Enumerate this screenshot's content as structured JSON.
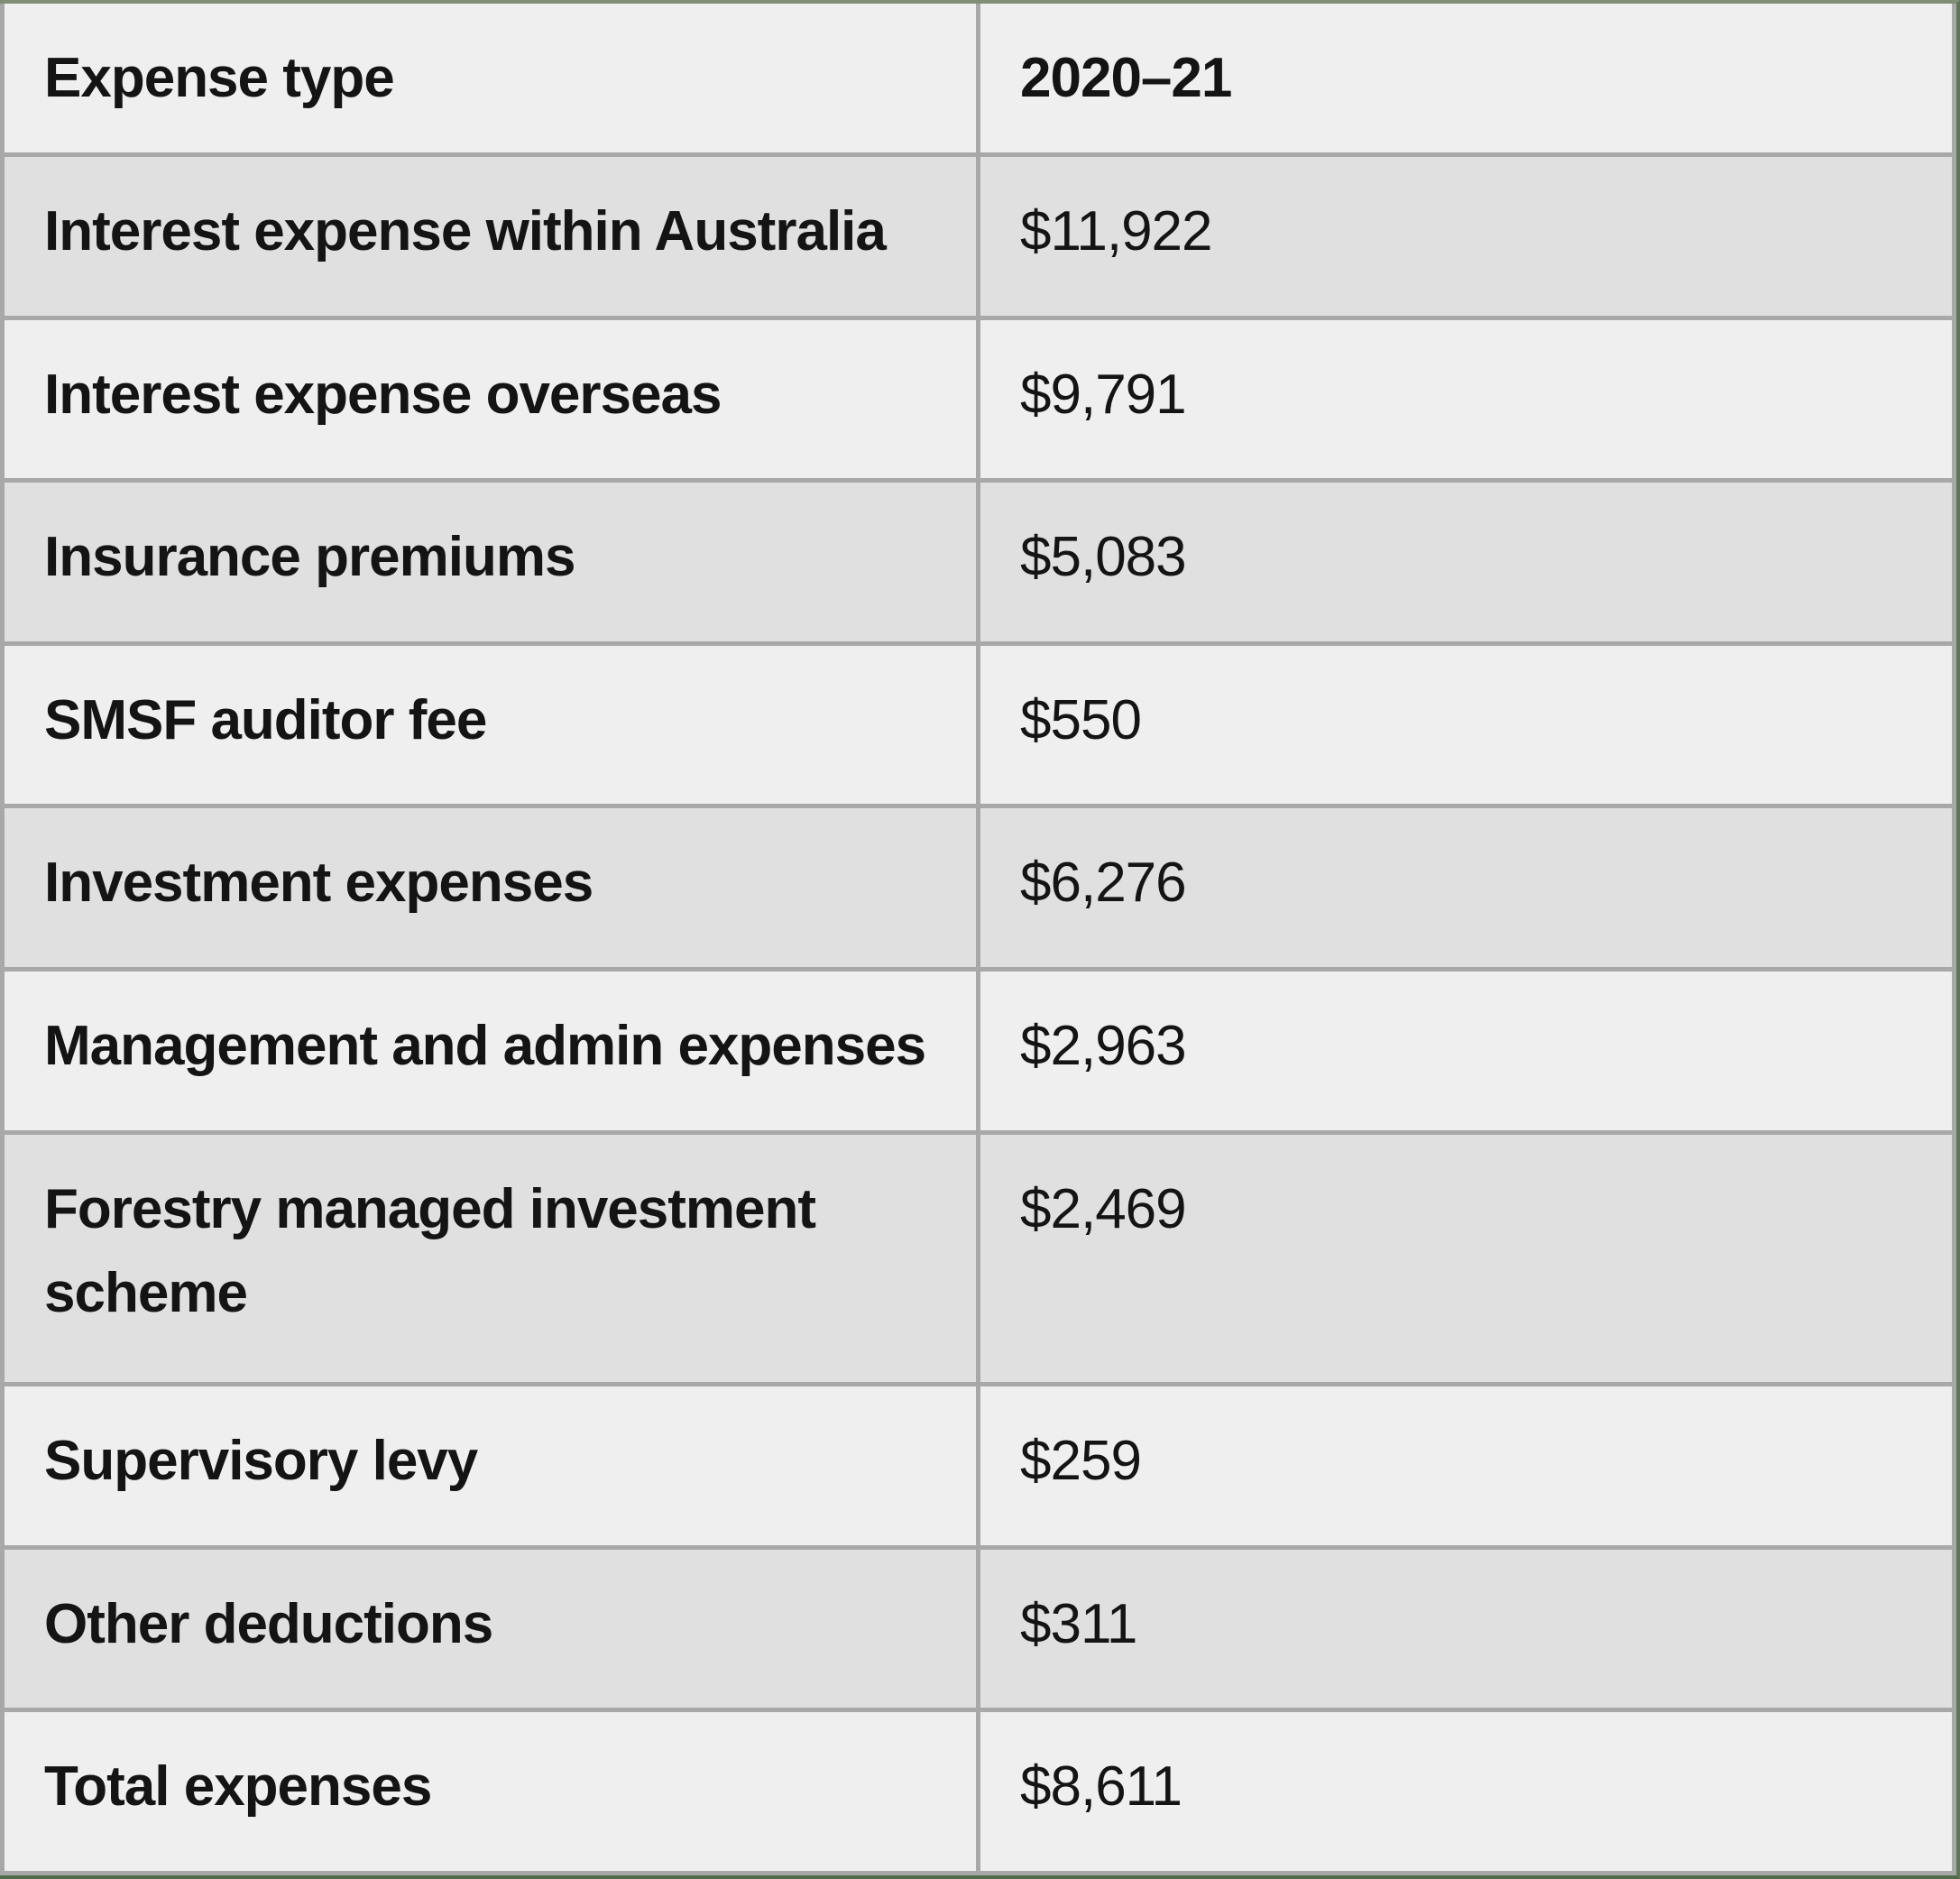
{
  "table": {
    "columns": [
      {
        "label": "Expense type"
      },
      {
        "label": "2020–21"
      }
    ],
    "rows": [
      {
        "label": "Interest expense within Australia",
        "value": "$11,922"
      },
      {
        "label": "Interest expense overseas",
        "value": "$9,791"
      },
      {
        "label": "Insurance premiums",
        "value": "$5,083"
      },
      {
        "label": "SMSF auditor fee",
        "value": "$550"
      },
      {
        "label": "Investment expenses",
        "value": "$6,276"
      },
      {
        "label": "Management and admin expenses",
        "value": "$2,963"
      },
      {
        "label": "Forestry managed investment scheme",
        "value": "$2,469"
      },
      {
        "label": "Supervisory levy",
        "value": "$259"
      },
      {
        "label": "Other deductions",
        "value": "$311"
      },
      {
        "label": "Total expenses",
        "value": "$8,611"
      }
    ]
  },
  "colors": {
    "row_light": "#efefef",
    "row_dark": "#e0e0e0",
    "cell_border": "#a8a8a8",
    "outer_border_top": "#7e8f76",
    "outer_border_right": "#5e7557",
    "outer_border_bottom": "#506b4a",
    "text": "#141414"
  },
  "chart_data": {
    "type": "table",
    "title": "",
    "columns": [
      "Expense type",
      "2020–21"
    ],
    "categories": [
      "Interest expense within Australia",
      "Interest expense overseas",
      "Insurance premiums",
      "SMSF auditor fee",
      "Investment expenses",
      "Management and admin expenses",
      "Forestry managed investment scheme",
      "Supervisory levy",
      "Other deductions",
      "Total expenses"
    ],
    "values": [
      11922,
      9791,
      5083,
      550,
      6276,
      2963,
      2469,
      259,
      311,
      8611
    ]
  }
}
